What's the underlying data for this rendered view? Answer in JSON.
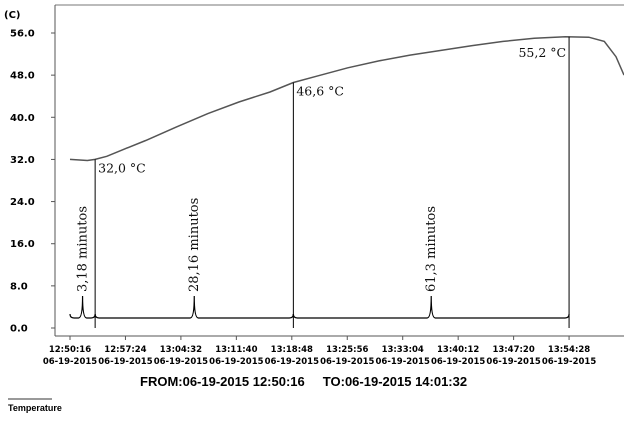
{
  "chart_data": {
    "type": "line",
    "unit_label": "(C)",
    "ylim": [
      0,
      56
    ],
    "y_ticks": [
      "0.0",
      "8.0",
      "16.0",
      "24.0",
      "32.0",
      "40.0",
      "48.0",
      "56.0"
    ],
    "x_range": [
      "12:50:16",
      "14:01:32"
    ],
    "x_ticks": [
      {
        "time": "12:50:16",
        "date": "06-19-2015"
      },
      {
        "time": "12:57:24",
        "date": "06-19-2015"
      },
      {
        "time": "13:04:32",
        "date": "06-19-2015"
      },
      {
        "time": "13:11:40",
        "date": "06-19-2015"
      },
      {
        "time": "13:18:48",
        "date": "06-19-2015"
      },
      {
        "time": "13:25:56",
        "date": "06-19-2015"
      },
      {
        "time": "13:33:04",
        "date": "06-19-2015"
      },
      {
        "time": "13:40:12",
        "date": "06-19-2015"
      },
      {
        "time": "13:47:20",
        "date": "06-19-2015"
      },
      {
        "time": "13:54:28",
        "date": "06-19-2015"
      }
    ],
    "series": [
      {
        "name": "Temperature",
        "color": "#555555",
        "points": [
          [
            "12:50:16",
            32.0
          ],
          [
            "12:52:30",
            31.8
          ],
          [
            "12:53:30",
            32.0
          ],
          [
            "12:55:00",
            32.6
          ],
          [
            "12:57:00",
            33.8
          ],
          [
            "13:00:00",
            35.6
          ],
          [
            "13:04:00",
            38.2
          ],
          [
            "13:08:00",
            40.7
          ],
          [
            "13:12:00",
            42.9
          ],
          [
            "13:16:00",
            44.8
          ],
          [
            "13:19:00",
            46.6
          ],
          [
            "13:22:00",
            47.8
          ],
          [
            "13:26:00",
            49.4
          ],
          [
            "13:30:00",
            50.7
          ],
          [
            "13:34:00",
            51.8
          ],
          [
            "13:38:00",
            52.7
          ],
          [
            "13:42:00",
            53.6
          ],
          [
            "13:46:00",
            54.4
          ],
          [
            "13:50:00",
            55.0
          ],
          [
            "13:54:00",
            55.3
          ],
          [
            "13:57:00",
            55.2
          ],
          [
            "13:59:00",
            54.4
          ],
          [
            "14:00:30",
            51.5
          ],
          [
            "14:01:32",
            48.0
          ]
        ]
      }
    ],
    "markers": [
      {
        "time": "12:53:30",
        "label": "32,0 °C"
      },
      {
        "time": "13:19:00",
        "label": "46,6 °C"
      },
      {
        "time": "13:54:28",
        "label": "55,2 °C"
      }
    ],
    "durations": [
      {
        "label": "3,18 minutos"
      },
      {
        "label": "28,16 minutos"
      },
      {
        "label": "61,3 minutos"
      }
    ],
    "range_text": "FROM:06-19-2015 12:50:16     TO:06-19-2015 14:01:32",
    "legend": [
      "Temperature"
    ],
    "grid": false
  }
}
